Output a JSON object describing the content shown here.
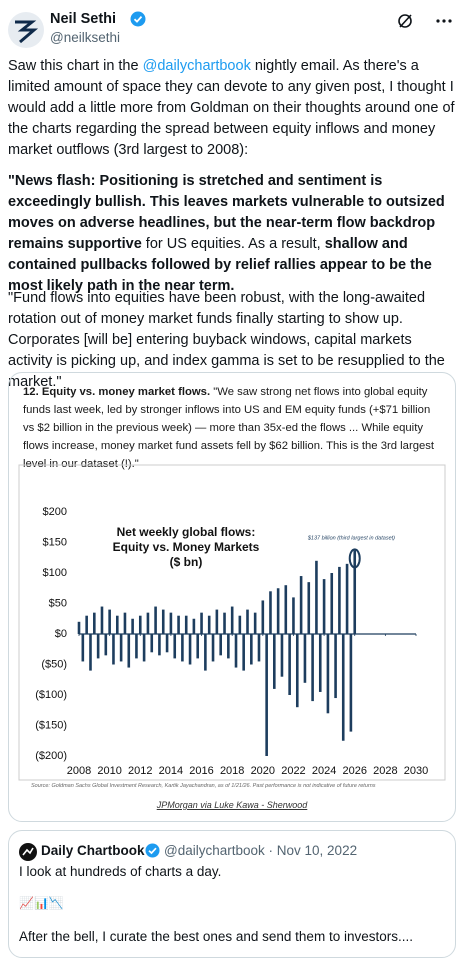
{
  "tweet": {
    "name": "Neil Sethi",
    "handle": "@neilksethi",
    "paragraphs": [
      [
        {
          "text": "Saw this chart in the ",
          "bold": false
        },
        {
          "text": "@dailychartbook",
          "bold": false,
          "link": true
        },
        {
          "text": " nightly email.  As there's a limited amount of space they can devote to any given post, I thought I would add a little more from Goldman on their thoughts around one of the charts regarding the spread between equity inflows and money market outflows (3rd largest to 2008):",
          "bold": false
        }
      ],
      [
        {
          "text": "\"News flash: Positioning is stretched and sentiment is exceedingly bullish. This leaves markets vulnerable to outsized moves on adverse headlines, but the near-term flow backdrop remains supportive",
          "bold": true
        },
        {
          "text": " for US equities. As a result, ",
          "bold": false
        },
        {
          "text": "shallow and contained pullbacks followed by relief rallies appear to be the most likely path in the near term.",
          "bold": true
        }
      ],
      [
        {
          "text": "\"Fund flows into equities have been robust, with the long-awaited rotation out of money market funds finally starting to show up. Corporates [will be] entering buyback windows, capital markets activity is picking up, and index gamma is set to be resupplied to the market.\"",
          "bold": false
        }
      ]
    ]
  },
  "card": {
    "heading": "12. Equity vs. money market flows.",
    "description": " \"We saw strong net flows into global equity funds last week, led by stronger inflows into US and EM equity funds (+$71 billion vs $2 billion in the previous week) — more than 35x-ed the flows ... While equity flows increase, money market fund assets fell by $62 billion. This is the 3rd largest level in our dataset (!).\"",
    "source": "Source: Goldman Sachs Global Investment Research, Kartik Jayachandran, as of 1/21/26. Past performance is not indicative of future returns",
    "credit": "JPMorgan via Luke Kawa - Sherwood"
  },
  "chart_data": {
    "type": "bar",
    "title_lines": [
      "Net weekly global flows:",
      "Equity vs. Money Markets",
      "($ bn)"
    ],
    "annotation": "$137 billion (third largest in dataset)",
    "color": "#1d3d5e",
    "xlim": [
      2008,
      2030
    ],
    "xticks": [
      2008,
      2010,
      2012,
      2014,
      2016,
      2018,
      2020,
      2022,
      2024,
      2026,
      2028,
      2030
    ],
    "ylim": [
      -200,
      200
    ],
    "yticks": [
      {
        "value": 200,
        "label": "$200"
      },
      {
        "value": 150,
        "label": "$150"
      },
      {
        "value": 100,
        "label": "$100"
      },
      {
        "value": 50,
        "label": "$50"
      },
      {
        "value": 0,
        "label": "$0"
      },
      {
        "value": -50,
        "label": "($50)"
      },
      {
        "value": -100,
        "label": "($100)"
      },
      {
        "value": -150,
        "label": "($150)"
      },
      {
        "value": -200,
        "label": "($200)"
      }
    ],
    "x": [
      2008,
      2008.25,
      2008.5,
      2008.75,
      2009,
      2009.25,
      2009.5,
      2009.75,
      2010,
      2010.25,
      2010.5,
      2010.75,
      2011,
      2011.25,
      2011.5,
      2011.75,
      2012,
      2012.25,
      2012.5,
      2012.75,
      2013,
      2013.25,
      2013.5,
      2013.75,
      2014,
      2014.25,
      2014.5,
      2014.75,
      2015,
      2015.25,
      2015.5,
      2015.75,
      2016,
      2016.25,
      2016.5,
      2016.75,
      2017,
      2017.25,
      2017.5,
      2017.75,
      2018,
      2018.25,
      2018.5,
      2018.75,
      2019,
      2019.25,
      2019.5,
      2019.75,
      2020,
      2020.25,
      2020.5,
      2020.75,
      2021,
      2021.25,
      2021.5,
      2021.75,
      2022,
      2022.25,
      2022.5,
      2022.75,
      2023,
      2023.25,
      2023.5,
      2023.75,
      2024,
      2024.25,
      2024.5,
      2024.75,
      2025,
      2025.25,
      2025.5,
      2025.75,
      2026
    ],
    "values": [
      20,
      -45,
      30,
      -60,
      35,
      -40,
      45,
      -35,
      40,
      -50,
      30,
      -45,
      35,
      -55,
      25,
      -40,
      30,
      -45,
      35,
      -30,
      45,
      -35,
      40,
      -30,
      35,
      -40,
      30,
      -45,
      30,
      -50,
      25,
      -40,
      35,
      -60,
      30,
      -45,
      40,
      -35,
      35,
      -40,
      45,
      -55,
      30,
      -60,
      40,
      -50,
      35,
      -45,
      55,
      -200,
      70,
      -90,
      75,
      -70,
      80,
      -100,
      60,
      -120,
      95,
      -80,
      85,
      -110,
      120,
      -95,
      90,
      -130,
      100,
      -105,
      110,
      -175,
      115,
      -160,
      137
    ]
  },
  "quote": {
    "name": "Daily Chartbook",
    "handle": "@dailychartbook",
    "date": "· Nov 10, 2022",
    "line1": "I look at hundreds of charts a day.",
    "emojis": "📈📊📉",
    "line2": "After the bell, I curate the best ones and send them to investors...."
  }
}
